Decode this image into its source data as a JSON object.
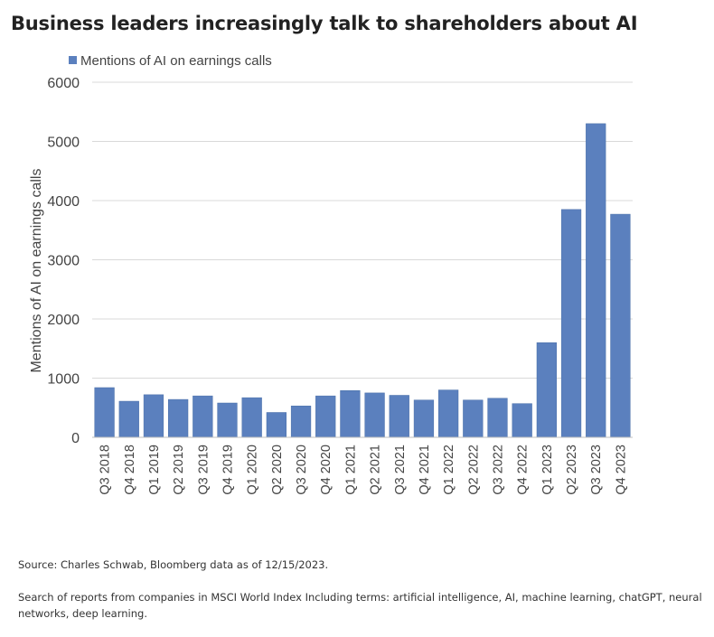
{
  "title": "Business leaders increasingly talk to shareholders about AI",
  "chart_data": {
    "type": "bar",
    "categories": [
      "Q3 2018",
      "Q4 2018",
      "Q1 2019",
      "Q2 2019",
      "Q3 2019",
      "Q4 2019",
      "Q1 2020",
      "Q2 2020",
      "Q3 2020",
      "Q4 2020",
      "Q1 2021",
      "Q2 2021",
      "Q3 2021",
      "Q4 2021",
      "Q1 2022",
      "Q2 2022",
      "Q3 2022",
      "Q4 2022",
      "Q1 2023",
      "Q2 2023",
      "Q3 2023",
      "Q4 2023"
    ],
    "series": [
      {
        "name": "Mentions of AI on earnings calls",
        "values": [
          840,
          610,
          720,
          640,
          700,
          580,
          670,
          420,
          530,
          700,
          790,
          750,
          710,
          630,
          800,
          630,
          660,
          570,
          1600,
          3850,
          5300,
          3770
        ]
      }
    ],
    "ylabel": "Mentions of AI on earnings calls",
    "xlabel": "",
    "ylim": [
      0,
      6000
    ],
    "yticks": [
      0,
      1000,
      2000,
      3000,
      4000,
      5000,
      6000
    ],
    "grid": true,
    "legend_position": "top-left",
    "colors": {
      "bar": "#5b80be",
      "grid": "#d9d9d9",
      "axis": "#bfbfbf"
    }
  },
  "footer": {
    "source": "Source: Charles Schwab, Bloomberg data as of 12/15/2023.",
    "note": "Search of reports from companies in MSCI World Index Including terms: artificial intelligence, AI, machine learning, chatGPT, neural networks, deep learning."
  }
}
